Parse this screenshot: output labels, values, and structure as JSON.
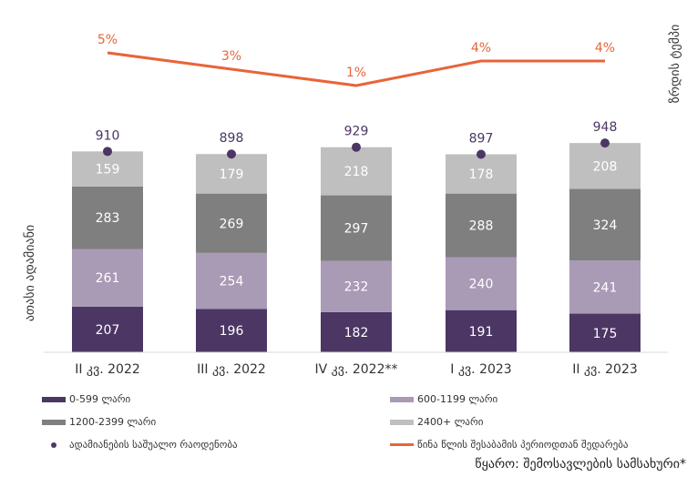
{
  "chart_data": {
    "type": "bar",
    "subtype": "stacked-bar-with-line",
    "categories": [
      "II კვ. 2022",
      "III კვ. 2022",
      "IV კვ. 2022**",
      "I კვ. 2023",
      "II კვ. 2023"
    ],
    "ylabel": "ათასი ადამიანი",
    "y2label": "ზრდის ტემპი",
    "series": [
      {
        "name": "0-599 ლარი",
        "color": "#4b3664",
        "values": [
          207,
          196,
          182,
          191,
          175
        ]
      },
      {
        "name": "600-1199 ლარი",
        "color": "#a99ab6",
        "values": [
          261,
          254,
          232,
          240,
          241
        ]
      },
      {
        "name": "1200-2399 ლარი",
        "color": "#7f7f7f",
        "values": [
          283,
          269,
          297,
          288,
          324
        ]
      },
      {
        "name": "2400+ ლარი",
        "color": "#bfbfbf",
        "values": [
          159,
          179,
          218,
          178,
          208
        ]
      }
    ],
    "average": {
      "name": "ადამიანების საშუალო რაოდენობა",
      "color": "#4b3664",
      "values": [
        910,
        898,
        929,
        897,
        948
      ]
    },
    "growth": {
      "name": "წინა წლის შესაბამის პერიოდთან შედარება",
      "color": "#e8643a",
      "values": [
        5,
        3,
        1,
        4,
        4
      ],
      "labels": [
        "5%",
        "3%",
        "1%",
        "4%",
        "4%"
      ]
    },
    "ylim": [
      0,
      1000
    ],
    "grid": false,
    "legend_placement": "bottom"
  },
  "source": "წყარო: შემოსავლების სამსახური*"
}
